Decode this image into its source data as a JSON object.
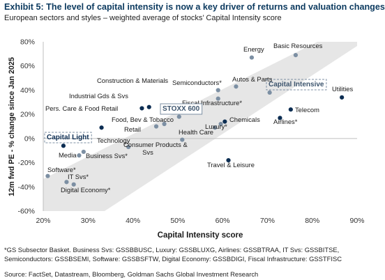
{
  "header": {
    "title": "Exhibit 5: The level of capital intensity is now a key driver of returns and valuation changes",
    "subtitle": "European sectors and styles – weighted average of stocks’ Capital Intensity score"
  },
  "footer": {
    "footnote": "*GS Subsector Basket. Business Svs: GSSBBUSC, Luxury: GSSBLUXG, Airlines: GSSBTRAA, IT Svs: GSSBITSE, Semiconductors: GSSBSEMI, Software: GSSBSFTW, Digital Economy: GSSBDIGI, Fiscal Infrastructure: GSSTFISC",
    "source": "Source: FactSet, Datastream, Bloomberg, Goldman Sachs Global Investment Research"
  },
  "colors": {
    "navy": "#0c2d52",
    "grey": "#7c8fa3",
    "band": "#e6e6e6",
    "boxed_label_border": "#7c8fa3",
    "title": "#0c3a5f"
  },
  "chart_data": {
    "type": "scatter",
    "xlabel": "Capital Intensity score",
    "ylabel": "12m fwd PE - % change since Jan 2025",
    "xlim": [
      0.2,
      0.9
    ],
    "ylim": [
      -60,
      80
    ],
    "x_ticks": [
      "20%",
      "30%",
      "40%",
      "50%",
      "60%",
      "70%",
      "80%",
      "90%"
    ],
    "y_ticks": [
      "-60%",
      "-40%",
      "-20%",
      "0%",
      "20%",
      "40%",
      "60%",
      "80%"
    ],
    "grid": false,
    "background_band": "diagonal light grey band from lower left to upper right",
    "points": [
      {
        "label": "Energy",
        "x": 0.665,
        "y": 67,
        "color": "grey"
      },
      {
        "label": "Basic Resources",
        "x": 0.763,
        "y": 69,
        "color": "grey"
      },
      {
        "label": "Utilities",
        "x": 0.866,
        "y": 34,
        "color": "navy"
      },
      {
        "label": "Capital Intensive",
        "x": 0.705,
        "y": 38,
        "color": "grey",
        "boxed": true
      },
      {
        "label": "Telecom",
        "x": 0.752,
        "y": 24,
        "color": "navy"
      },
      {
        "label": "Airlines*",
        "x": 0.728,
        "y": 17,
        "color": "navy"
      },
      {
        "label": "Autos & Parts",
        "x": 0.63,
        "y": 43,
        "color": "grey"
      },
      {
        "label": "Semiconductors*",
        "x": 0.59,
        "y": 40,
        "color": "grey"
      },
      {
        "label": "Fiscal Infrastructure*",
        "x": 0.59,
        "y": 33,
        "color": "grey"
      },
      {
        "label": "Chemicals",
        "x": 0.605,
        "y": 14,
        "color": "navy"
      },
      {
        "label": "Luxury*",
        "x": 0.596,
        "y": 12,
        "color": "grey"
      },
      {
        "label": "Health Care",
        "x": 0.583,
        "y": 9,
        "color": "grey"
      },
      {
        "label": "Travel & Leisure",
        "x": 0.613,
        "y": -18,
        "color": "navy"
      },
      {
        "label": "Construction & Materials",
        "x": 0.436,
        "y": 26,
        "color": "navy"
      },
      {
        "label": "Industrial Gds & Svs",
        "x": 0.42,
        "y": 25,
        "color": "navy"
      },
      {
        "label": "STOXX 600",
        "x": 0.503,
        "y": 18,
        "color": "grey",
        "boxed": true
      },
      {
        "label": "Food, Bev & Tobacco",
        "x": 0.47,
        "y": 12,
        "color": "grey"
      },
      {
        "label": "Retail",
        "x": 0.452,
        "y": 10,
        "color": "grey"
      },
      {
        "label": "Consumer Products & Svs",
        "x": 0.51,
        "y": -1,
        "color": "grey"
      },
      {
        "label": "Pers. Care & Food Retail",
        "x": 0.33,
        "y": 9,
        "color": "navy"
      },
      {
        "label": "Capital Light",
        "x": 0.245,
        "y": -6,
        "color": "navy",
        "boxed": true
      },
      {
        "label": "Technology",
        "x": 0.39,
        "y": -7,
        "color": "grey"
      },
      {
        "label": "Media",
        "x": 0.28,
        "y": -14,
        "color": "grey"
      },
      {
        "label": "Business Svs*",
        "x": 0.29,
        "y": -11,
        "color": "grey"
      },
      {
        "label": "Software*",
        "x": 0.21,
        "y": -31,
        "color": "grey"
      },
      {
        "label": "IT Svs*",
        "x": 0.252,
        "y": -36,
        "color": "grey"
      },
      {
        "label": "Digital Economy*",
        "x": 0.268,
        "y": -38,
        "color": "grey"
      }
    ]
  }
}
